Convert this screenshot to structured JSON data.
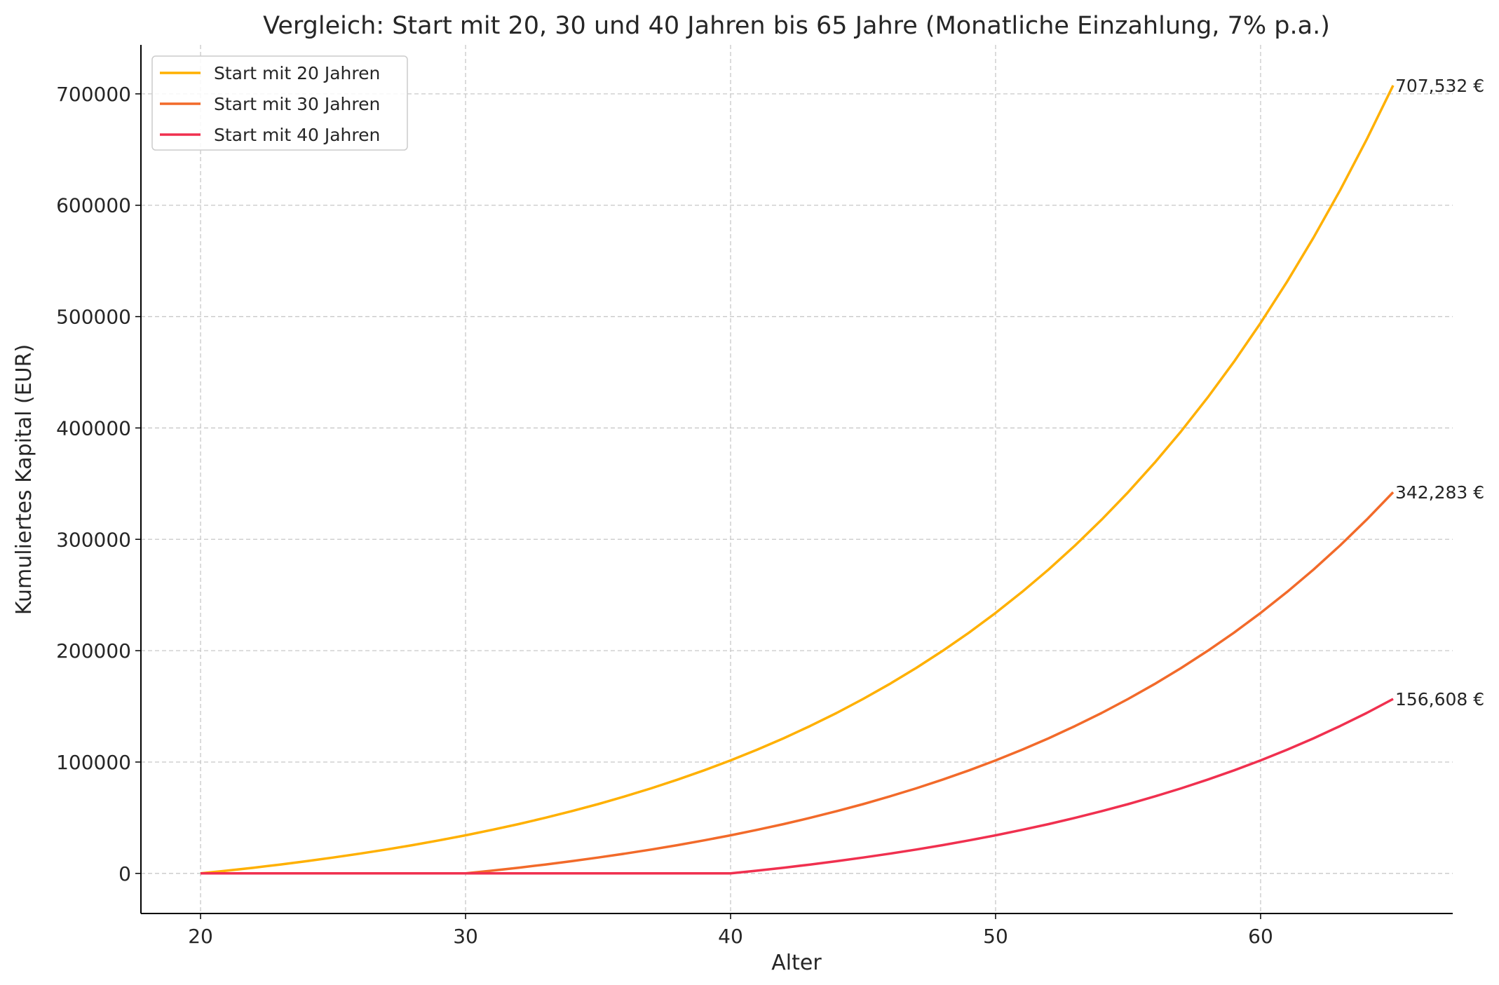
{
  "chart_data": {
    "type": "line",
    "title": "Vergleich: Start mit 20, 30 und 40 Jahren bis 65 Jahre (Monatliche Einzahlung, 7% p.a.)",
    "xlabel": "Alter",
    "ylabel": "Kumuliertes Kapital (EUR)",
    "xlim": [
      17.75,
      67.25
    ],
    "ylim": [
      -36000,
      744000
    ],
    "xticks": [
      20,
      30,
      40,
      50,
      60
    ],
    "yticks": [
      0,
      100000,
      200000,
      300000,
      400000,
      500000,
      600000,
      700000
    ],
    "grid": true,
    "legend_position": "top-left",
    "x": [
      20,
      21,
      22,
      23,
      24,
      25,
      26,
      27,
      28,
      29,
      30,
      31,
      32,
      33,
      34,
      35,
      36,
      37,
      38,
      39,
      40,
      41,
      42,
      43,
      44,
      45,
      46,
      47,
      48,
      49,
      50,
      51,
      52,
      53,
      54,
      55,
      56,
      57,
      58,
      59,
      60,
      61,
      62,
      63,
      64,
      65
    ],
    "series": [
      {
        "name": "Start mit 20 Jahren",
        "color": "#FFB000",
        "end_label": "707,532 €",
        "values": [
          0,
          2476,
          5125,
          7960,
          10994,
          14240,
          17712,
          21428,
          25404,
          29659,
          34211,
          39082,
          44294,
          49870,
          55838,
          62222,
          69055,
          76364,
          84185,
          92556,
          101510,
          111092,
          121343,
          132315,
          144051,
          156613,
          170050,
          184431,
          199817,
          216279,
          233895,
          252746,
          272913,
          294489,
          317582,
          342290,
          368726,
          397009,
          427281,
          459668,
          494317,
          531398,
          571072,
          613521,
          658949,
          707532
        ]
      },
      {
        "name": "Start mit 30 Jahren",
        "color": "#F26A2A",
        "end_label": "342,283 €",
        "values": [
          0,
          0,
          0,
          0,
          0,
          0,
          0,
          0,
          0,
          0,
          0,
          2476,
          5125,
          7960,
          10994,
          14240,
          17712,
          21428,
          25404,
          29659,
          34211,
          39082,
          44294,
          49870,
          55838,
          62222,
          69055,
          76364,
          84185,
          92556,
          101510,
          111092,
          121343,
          132315,
          144051,
          156613,
          170050,
          184431,
          199817,
          216279,
          233895,
          252746,
          272913,
          294489,
          317582,
          342283
        ]
      },
      {
        "name": "Start mit 40 Jahren",
        "color": "#F0304F",
        "end_label": "156,608 €",
        "values": [
          0,
          0,
          0,
          0,
          0,
          0,
          0,
          0,
          0,
          0,
          0,
          0,
          0,
          0,
          0,
          0,
          0,
          0,
          0,
          0,
          0,
          2476,
          5125,
          7960,
          10994,
          14240,
          17712,
          21428,
          25404,
          29659,
          34211,
          39082,
          44294,
          49870,
          55838,
          62222,
          69055,
          76364,
          84185,
          92556,
          101510,
          111092,
          121343,
          132315,
          144051,
          156608
        ]
      }
    ]
  }
}
